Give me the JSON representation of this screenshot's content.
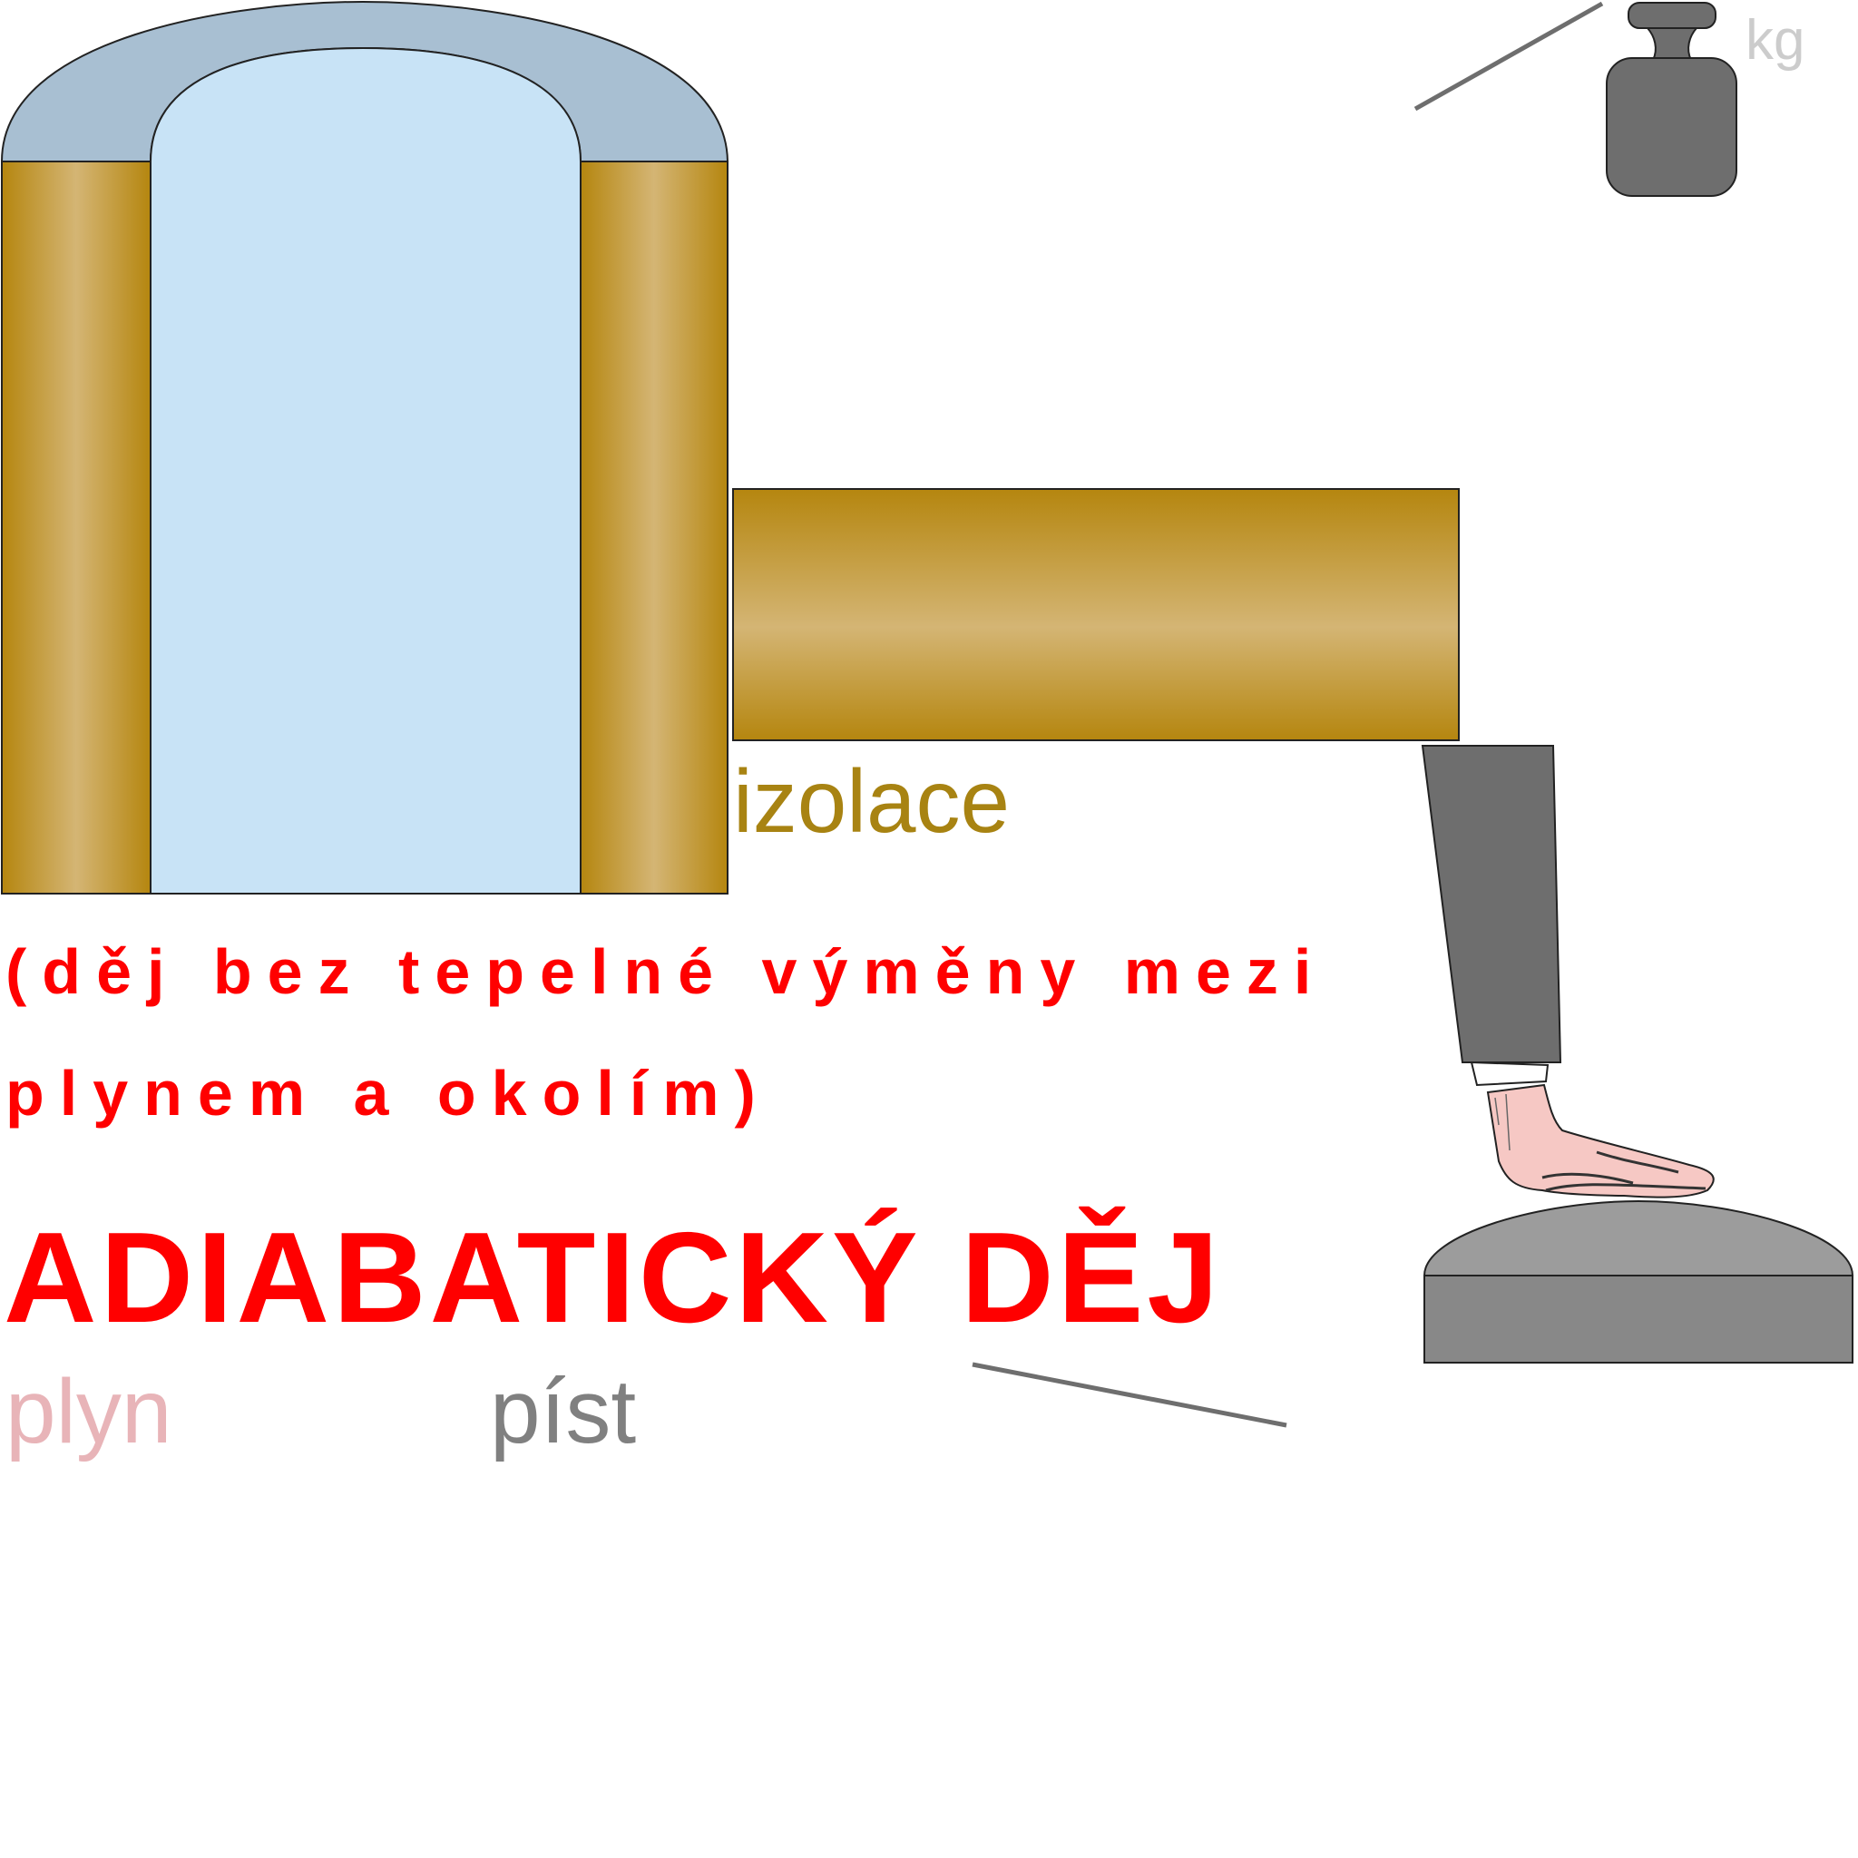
{
  "labels": {
    "insulation": "izolace",
    "description_line1": "(děj bez tepelné výměny mezi",
    "description_line2": "plynem a okolím)",
    "title": "ADIABATICKÝ DĚJ",
    "gas": "plyn",
    "piston": "píst",
    "weight_unit": "kg"
  },
  "colors": {
    "insulation_gold": "#b5860f",
    "insulation_light": "#d4b574",
    "cap_blue_grey": "#a8bfd2",
    "gas_light_blue": "#c8e3f6",
    "piston_top": "#9c9c9c",
    "piston_body": "#888888",
    "sleeve_grey": "#6e6e6e",
    "skin": "#f6c8c4",
    "title_red": "#ff0000",
    "gas_label_pink": "#e8b4b8",
    "piston_label_grey": "#808080",
    "kg_label_grey": "#cccccc",
    "insulation_label_gold": "#a88312"
  },
  "icons": {
    "weight": "kilogram-weight-icon",
    "hand": "pressing-hand-icon"
  }
}
